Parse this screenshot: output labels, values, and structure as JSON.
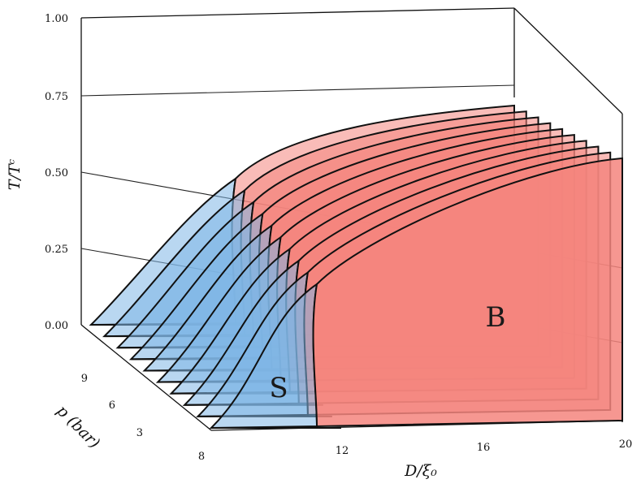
{
  "chart_data": {
    "type": "3d-phase-diagram",
    "x_axis": {
      "label": "D/ξ₀",
      "ticks": [
        "8",
        "12",
        "16",
        "20"
      ],
      "range": [
        8,
        20
      ]
    },
    "y_axis": {
      "label": "p (bar)",
      "ticks": [
        "3",
        "6",
        "9"
      ]
    },
    "z_axis": {
      "label": "T/Tᶜ",
      "ticks": [
        "0.00",
        "0.25",
        "0.50",
        "0.75",
        "1.00"
      ],
      "range": [
        0,
        1
      ]
    },
    "regions": [
      {
        "name": "S",
        "color": "#7fb6e6"
      },
      {
        "name": "B",
        "color": "#f4857e"
      }
    ],
    "slices": 10,
    "grid": true
  }
}
